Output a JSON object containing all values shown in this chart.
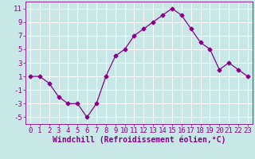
{
  "x": [
    0,
    1,
    2,
    3,
    4,
    5,
    6,
    7,
    8,
    9,
    10,
    11,
    12,
    13,
    14,
    15,
    16,
    17,
    18,
    19,
    20,
    21,
    22,
    23
  ],
  "y": [
    1,
    1,
    0,
    -2,
    -3,
    -3,
    -5,
    -3,
    1,
    4,
    5,
    7,
    8,
    9,
    10,
    11,
    10,
    8,
    6,
    5,
    2,
    3,
    2,
    1
  ],
  "line_color": "#880088",
  "marker": "D",
  "marker_size": 2.5,
  "background_color": "#c8e8e8",
  "grid_color": "#ffffff",
  "xlabel": "Windchill (Refroidissement éolien,°C)",
  "xlabel_color": "#880088",
  "tick_color": "#880088",
  "ylim": [
    -6,
    12
  ],
  "yticks": [
    -5,
    -3,
    -1,
    1,
    3,
    5,
    7,
    9,
    11
  ],
  "xlim": [
    -0.5,
    23.5
  ],
  "xticks": [
    0,
    1,
    2,
    3,
    4,
    5,
    6,
    7,
    8,
    9,
    10,
    11,
    12,
    13,
    14,
    15,
    16,
    17,
    18,
    19,
    20,
    21,
    22,
    23
  ],
  "font_size": 6.5,
  "xlabel_fontsize": 7.0
}
